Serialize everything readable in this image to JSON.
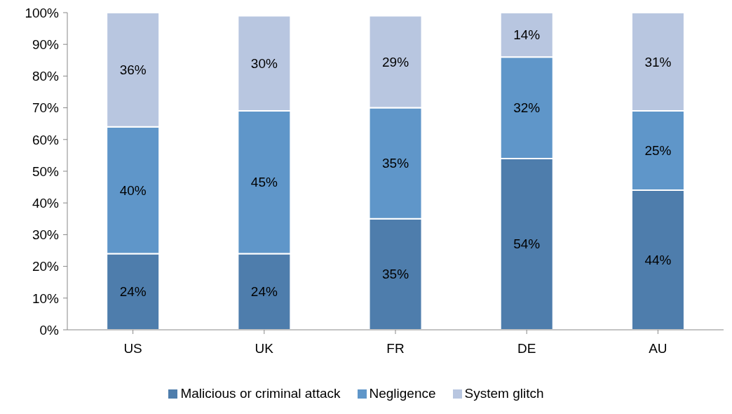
{
  "chart_data": {
    "type": "bar",
    "stacked": true,
    "categories": [
      "US",
      "UK",
      "FR",
      "DE",
      "AU"
    ],
    "series": [
      {
        "name": "Malicious or criminal attack",
        "color": "#4e7dac",
        "values": [
          24,
          24,
          35,
          54,
          44
        ],
        "value_labels": [
          "24%",
          "24%",
          "35%",
          "54%",
          "44%"
        ]
      },
      {
        "name": "Negligence",
        "color": "#5f96c9",
        "values": [
          40,
          45,
          35,
          32,
          25
        ],
        "value_labels": [
          "40%",
          "45%",
          "35%",
          "32%",
          "25%"
        ]
      },
      {
        "name": "System glitch",
        "color": "#b8c6e0",
        "values": [
          36,
          30,
          29,
          14,
          31
        ],
        "value_labels": [
          "36%",
          "30%",
          "29%",
          "14%",
          "31%"
        ]
      }
    ],
    "ylim": [
      0,
      100
    ],
    "yticks": [
      {
        "value": 0,
        "label": "0%"
      },
      {
        "value": 10,
        "label": "10%"
      },
      {
        "value": 20,
        "label": "20%"
      },
      {
        "value": 30,
        "label": "30%"
      },
      {
        "value": 40,
        "label": "40%"
      },
      {
        "value": 50,
        "label": "50%"
      },
      {
        "value": 60,
        "label": "60%"
      },
      {
        "value": 70,
        "label": "70%"
      },
      {
        "value": 80,
        "label": "80%"
      },
      {
        "value": 90,
        "label": "90%"
      },
      {
        "value": 100,
        "label": "100%"
      }
    ],
    "grid": false,
    "legend": "bottom"
  }
}
